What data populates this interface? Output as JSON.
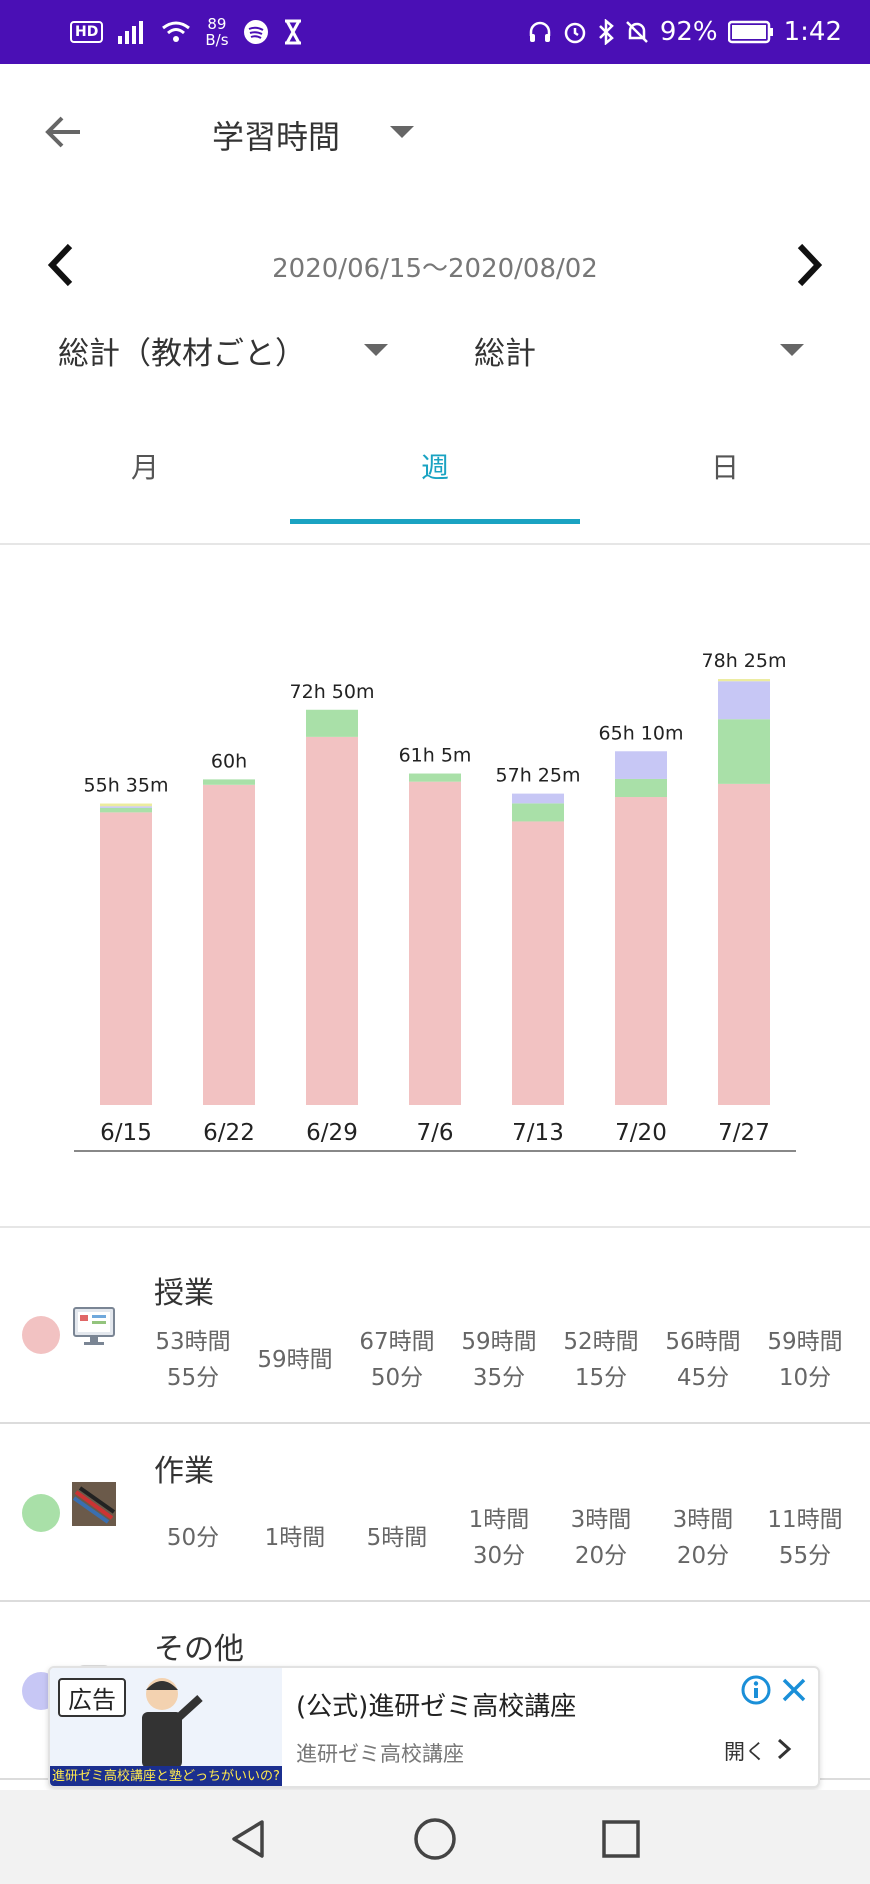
{
  "status_bar": {
    "hd": "HD",
    "netspeed_value": "89",
    "netspeed_unit": "B/s",
    "battery": "92%",
    "time": "1:42"
  },
  "header": {
    "title": "学習時間"
  },
  "range": {
    "text": "2020/06/15〜2020/08/02"
  },
  "selectors": {
    "left": "総計（教材ごと）",
    "right": "総計"
  },
  "tabs": [
    {
      "label": "月",
      "active": false
    },
    {
      "label": "週",
      "active": true
    },
    {
      "label": "日",
      "active": false
    }
  ],
  "colors": {
    "lesson": "#f2c2c2",
    "work": "#a9e0a8",
    "other": "#c7c7f5",
    "misc": "#ecec9e",
    "accent": "#1aa3c2",
    "status_bar": "#4a0fb5"
  },
  "chart_data": {
    "type": "bar",
    "stacked": true,
    "categories": [
      "6/15",
      "6/22",
      "6/29",
      "7/6",
      "7/13",
      "7/20",
      "7/27"
    ],
    "totals_labels": [
      "55h 35m",
      "60h",
      "72h 50m",
      "61h 5m",
      "57h 25m",
      "65h 10m",
      "78h 25m"
    ],
    "series": [
      {
        "name": "授業",
        "color_key": "lesson",
        "values": [
          53.92,
          59.0,
          67.83,
          59.58,
          52.25,
          56.75,
          59.17
        ]
      },
      {
        "name": "作業",
        "color_key": "work",
        "values": [
          0.83,
          1.0,
          5.0,
          1.5,
          3.33,
          3.33,
          11.92
        ]
      },
      {
        "name": "その他",
        "color_key": "other",
        "values": [
          0.3,
          0.0,
          0.0,
          0.0,
          1.8,
          5.1,
          7.0
        ]
      },
      {
        "name": "",
        "color_key": "misc",
        "values": [
          0.5,
          0.0,
          0.0,
          0.0,
          0.0,
          0.0,
          0.4
        ]
      }
    ],
    "ylim": [
      0,
      82
    ],
    "grid": false,
    "legend": "none"
  },
  "categories": [
    {
      "name": "授業",
      "color_key": "lesson",
      "thumb": "monitor-icon",
      "values": [
        [
          "53時間",
          "55分"
        ],
        [
          "59時間",
          ""
        ],
        [
          "67時間",
          "50分"
        ],
        [
          "59時間",
          "35分"
        ],
        [
          "52時間",
          "15分"
        ],
        [
          "56時間",
          "45分"
        ],
        [
          "59時間",
          "10分"
        ]
      ]
    },
    {
      "name": "作業",
      "color_key": "work",
      "thumb": "pens-photo",
      "values": [
        [
          "50分",
          ""
        ],
        [
          "1時間",
          ""
        ],
        [
          "5時間",
          ""
        ],
        [
          "1時間",
          "30分"
        ],
        [
          "3時間",
          "20分"
        ],
        [
          "3時間",
          "20分"
        ],
        [
          "11時間",
          "55分"
        ]
      ]
    },
    {
      "name": "その他",
      "color_key": "other",
      "thumb": "blank-icon",
      "values": []
    }
  ],
  "ad": {
    "tag": "広告",
    "strip": "進研ゼミ高校講座と塾どっちがいいの?",
    "title": "(公式)進研ゼミ高校講座",
    "subtitle": "進研ゼミ高校講座",
    "open_label": "開く"
  }
}
